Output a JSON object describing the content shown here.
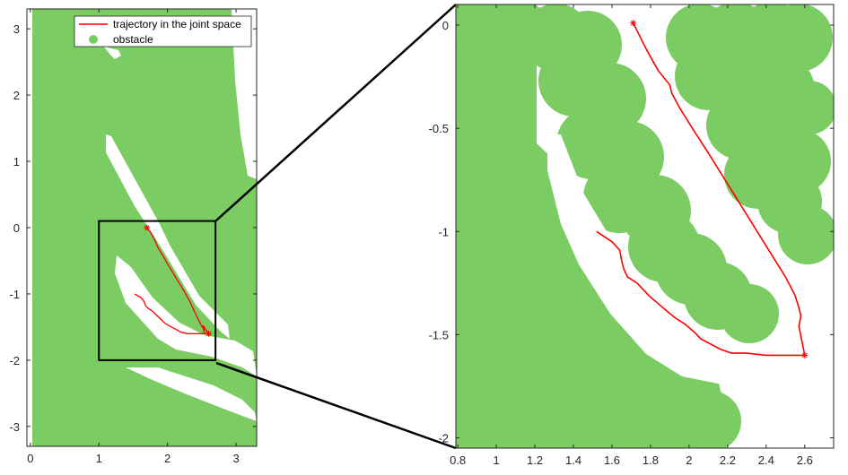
{
  "chart_data": [
    {
      "type": "scatter",
      "panel": "overview",
      "xlim": [
        -0.05,
        3.3
      ],
      "ylim": [
        -3.3,
        3.3
      ],
      "xticks": [
        0,
        1,
        2,
        3
      ],
      "yticks": [
        3,
        2,
        1,
        0,
        -1,
        -2,
        -3
      ],
      "xtick_labels": [
        "0",
        "1",
        "2",
        "3"
      ],
      "ytick_labels": [
        "3",
        "2",
        "1",
        "0",
        "-1",
        "-2",
        "-3"
      ],
      "grid": false,
      "legend": {
        "placement": "top-right",
        "entries": [
          {
            "label": "trajectory in the joint space",
            "color": "#ff0000",
            "marker": "line"
          },
          {
            "label": "obstacle",
            "color": "#7acc63",
            "marker": "circle"
          }
        ]
      },
      "zoom_box": {
        "x": [
          1,
          2.7
        ],
        "y": [
          -2,
          0.1
        ]
      },
      "series": [
        {
          "name": "trajectory in the joint space",
          "color": "#ff0000",
          "points": [
            [
              1.7,
              0
            ],
            [
              1.76,
              -0.08
            ],
            [
              1.82,
              -0.2
            ],
            [
              1.86,
              -0.3
            ],
            [
              1.92,
              -0.4
            ],
            [
              2.02,
              -0.58
            ],
            [
              2.12,
              -0.75
            ],
            [
              2.22,
              -0.92
            ],
            [
              2.32,
              -1.1
            ],
            [
              2.4,
              -1.28
            ],
            [
              2.48,
              -1.45
            ],
            [
              2.52,
              -1.52
            ],
            [
              2.54,
              -1.58
            ],
            [
              2.52,
              -1.48
            ],
            [
              2.6,
              -1.6
            ]
          ],
          "marker_points": [
            [
              1.7,
              0
            ],
            [
              2.6,
              -1.6
            ]
          ]
        },
        {
          "name": "",
          "color": "#ff0000",
          "points": [
            [
              1.52,
              -1.0
            ],
            [
              1.62,
              -1.06
            ],
            [
              1.66,
              -1.12
            ],
            [
              1.68,
              -1.18
            ],
            [
              1.72,
              -1.22
            ],
            [
              1.78,
              -1.26
            ],
            [
              1.84,
              -1.32
            ],
            [
              1.9,
              -1.38
            ],
            [
              1.96,
              -1.44
            ],
            [
              2.02,
              -1.48
            ],
            [
              2.1,
              -1.52
            ],
            [
              2.2,
              -1.58
            ],
            [
              2.3,
              -1.6
            ],
            [
              2.5,
              -1.6
            ],
            [
              2.6,
              -1.6
            ]
          ]
        }
      ]
    },
    {
      "type": "scatter",
      "panel": "zoom",
      "xlim": [
        0.79,
        2.75
      ],
      "ylim": [
        -2.05,
        0.1
      ],
      "xticks": [
        0.8,
        1,
        1.2,
        1.4,
        1.6,
        1.8,
        2,
        2.2,
        2.4,
        2.6
      ],
      "yticks": [
        0,
        -0.5,
        -1,
        -1.5,
        -2
      ],
      "xtick_labels": [
        "0.8",
        "1",
        "1.2",
        "1.4",
        "1.6",
        "1.8",
        "2",
        "2.2",
        "2.4",
        "2.6"
      ],
      "ytick_labels": [
        "0",
        "-0.5",
        "-1",
        "-1.5",
        "-2"
      ],
      "grid": false,
      "series": [
        {
          "name": "trajectory in the joint space",
          "color": "#ff0000",
          "points": [
            [
              1.71,
              0.01
            ],
            [
              1.78,
              -0.12
            ],
            [
              1.84,
              -0.22
            ],
            [
              1.9,
              -0.29
            ],
            [
              1.91,
              -0.33
            ],
            [
              1.95,
              -0.4
            ],
            [
              2.01,
              -0.49
            ],
            [
              2.1,
              -0.62
            ],
            [
              2.2,
              -0.77
            ],
            [
              2.3,
              -0.92
            ],
            [
              2.4,
              -1.07
            ],
            [
              2.5,
              -1.22
            ],
            [
              2.55,
              -1.31
            ],
            [
              2.57,
              -1.37
            ],
            [
              2.58,
              -1.41
            ],
            [
              2.57,
              -1.46
            ],
            [
              2.6,
              -1.6
            ]
          ],
          "marker_points": [
            [
              1.71,
              0.01
            ],
            [
              2.6,
              -1.6
            ]
          ]
        },
        {
          "name": "",
          "color": "#ff0000",
          "points": [
            [
              1.52,
              -1.0
            ],
            [
              1.6,
              -1.05
            ],
            [
              1.64,
              -1.09
            ],
            [
              1.65,
              -1.14
            ],
            [
              1.66,
              -1.18
            ],
            [
              1.68,
              -1.22
            ],
            [
              1.73,
              -1.25
            ],
            [
              1.76,
              -1.28
            ],
            [
              1.79,
              -1.31
            ],
            [
              1.84,
              -1.35
            ],
            [
              1.89,
              -1.39
            ],
            [
              1.93,
              -1.42
            ],
            [
              1.98,
              -1.45
            ],
            [
              2.03,
              -1.49
            ],
            [
              2.06,
              -1.52
            ],
            [
              2.1,
              -1.54
            ],
            [
              2.16,
              -1.57
            ],
            [
              2.22,
              -1.59
            ],
            [
              2.3,
              -1.59
            ],
            [
              2.4,
              -1.6
            ],
            [
              2.5,
              -1.6
            ],
            [
              2.6,
              -1.6
            ]
          ]
        }
      ]
    }
  ]
}
